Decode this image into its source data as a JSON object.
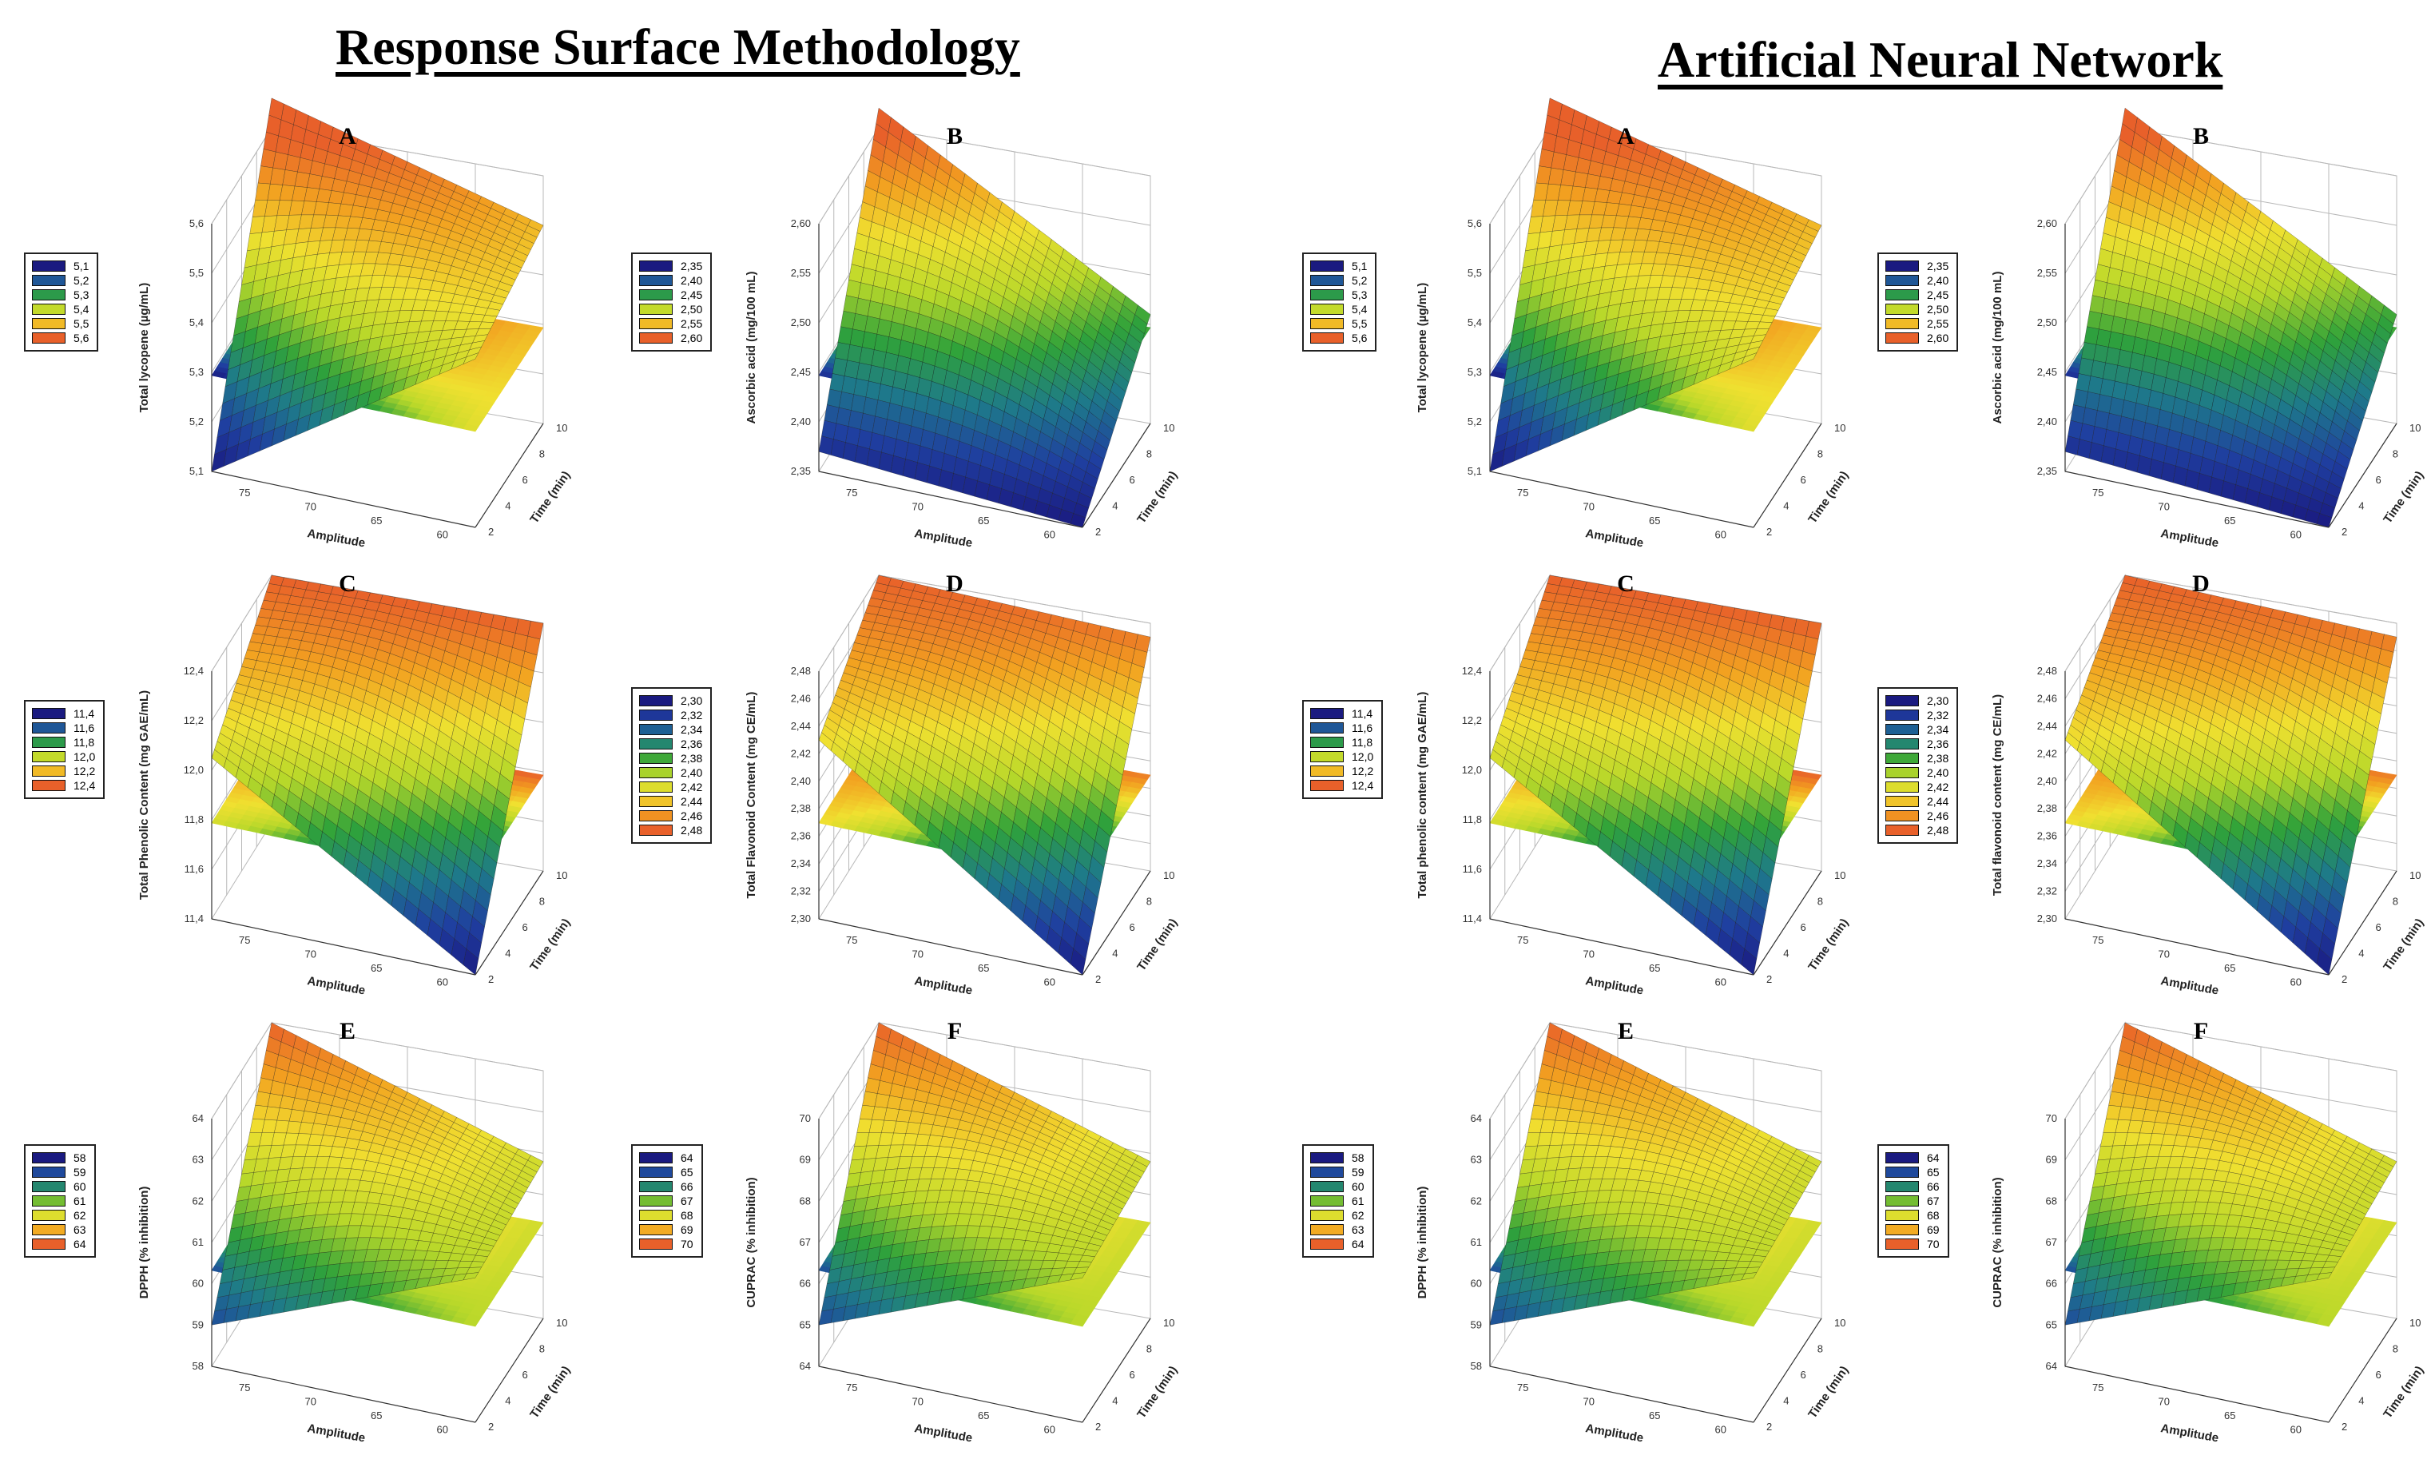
{
  "sections": [
    {
      "title": "Response Surface Methodology"
    },
    {
      "title": "Artificial Neural Network"
    }
  ],
  "palette": [
    "#1a1a80",
    "#1f3fa0",
    "#1e7a8a",
    "#2fa23a",
    "#b8d82a",
    "#f0e030",
    "#f2a020",
    "#e8602a"
  ],
  "chart_data": [
    {
      "type": "surface3d",
      "section": "Response Surface Methodology",
      "title": "A",
      "zlabel": "Total lycopene (µg/mL)",
      "xlabel": "Amplitude",
      "ylabel": "Time (min)",
      "x_ticks": [
        "75",
        "70",
        "65",
        "60"
      ],
      "y_ticks": [
        "2",
        "4",
        "6",
        "8",
        "10"
      ],
      "z_ticks": [
        "5,1",
        "5,2",
        "5,3",
        "5,4",
        "5,5",
        "5,6"
      ],
      "legend": [
        "5,1",
        "5,2",
        "5,3",
        "5,4",
        "5,5",
        "5,6"
      ],
      "corners": [
        5.1,
        5.44,
        5.66,
        5.5
      ]
    },
    {
      "type": "surface3d",
      "section": "Response Surface Methodology",
      "title": "B",
      "zlabel": "Ascorbic acid (mg/100 mL)",
      "xlabel": "Amplitude",
      "ylabel": "Time (min)",
      "x_ticks": [
        "75",
        "70",
        "65",
        "60"
      ],
      "y_ticks": [
        "2",
        "4",
        "6",
        "8",
        "10"
      ],
      "z_ticks": [
        "2,35",
        "2,40",
        "2,45",
        "2,50",
        "2,55",
        "2,60"
      ],
      "legend": [
        "2,35",
        "2,40",
        "2,45",
        "2,50",
        "2,55",
        "2,60"
      ],
      "corners": [
        2.37,
        2.35,
        2.62,
        2.46
      ]
    },
    {
      "type": "surface3d",
      "section": "Response Surface Methodology",
      "title": "C",
      "zlabel": "Total Phenolic Content (mg GAE/mL)",
      "xlabel": "Amplitude",
      "ylabel": "Time (min)",
      "x_ticks": [
        "75",
        "70",
        "65",
        "60"
      ],
      "y_ticks": [
        "2",
        "4",
        "6",
        "8",
        "10"
      ],
      "z_ticks": [
        "11,4",
        "11,6",
        "11,8",
        "12,0",
        "12,2",
        "12,4"
      ],
      "legend": [
        "11,4",
        "11,6",
        "11,8",
        "12,0",
        "12,2",
        "12,4"
      ],
      "corners": [
        12.05,
        11.4,
        12.4,
        12.4
      ]
    },
    {
      "type": "surface3d",
      "section": "Response Surface Methodology",
      "title": "D",
      "zlabel": "Total Flavonoid Content (mg CE/mL)",
      "xlabel": "Amplitude",
      "ylabel": "Time (min)",
      "x_ticks": [
        "75",
        "70",
        "65",
        "60"
      ],
      "y_ticks": [
        "2",
        "4",
        "6",
        "8",
        "10"
      ],
      "z_ticks": [
        "2,30",
        "2,32",
        "2,34",
        "2,36",
        "2,38",
        "2,40",
        "2,42",
        "2,44",
        "2,46",
        "2,48"
      ],
      "legend": [
        "2,30",
        "2,32",
        "2,34",
        "2,36",
        "2,38",
        "2,40",
        "2,42",
        "2,44",
        "2,46",
        "2,48"
      ],
      "corners": [
        2.43,
        2.3,
        2.48,
        2.47
      ]
    },
    {
      "type": "surface3d",
      "section": "Response Surface Methodology",
      "title": "E",
      "zlabel": "DPPH (% inhibition)",
      "xlabel": "Amplitude",
      "ylabel": "Time (min)",
      "x_ticks": [
        "75",
        "70",
        "65",
        "60"
      ],
      "y_ticks": [
        "2",
        "4",
        "6",
        "8",
        "10"
      ],
      "z_ticks": [
        "58",
        "59",
        "60",
        "61",
        "62",
        "63",
        "64"
      ],
      "legend": [
        "58",
        "59",
        "60",
        "61",
        "62",
        "63",
        "64"
      ],
      "corners": [
        59.0,
        61.5,
        64.0,
        61.8
      ]
    },
    {
      "type": "surface3d",
      "section": "Response Surface Methodology",
      "title": "F",
      "zlabel": "CUPRAC (% inhibition)",
      "xlabel": "Amplitude",
      "ylabel": "Time (min)",
      "x_ticks": [
        "75",
        "70",
        "65",
        "60"
      ],
      "y_ticks": [
        "2",
        "4",
        "6",
        "8",
        "10"
      ],
      "z_ticks": [
        "64",
        "65",
        "66",
        "67",
        "68",
        "69",
        "70"
      ],
      "legend": [
        "64",
        "65",
        "66",
        "67",
        "68",
        "69",
        "70"
      ],
      "corners": [
        65.0,
        67.5,
        70.0,
        67.8
      ]
    },
    {
      "type": "surface3d",
      "section": "Artificial Neural Network",
      "title": "A",
      "zlabel": "Total lycopene (µg/mL)",
      "xlabel": "Amplitude",
      "ylabel": "Time (min)",
      "x_ticks": [
        "75",
        "70",
        "65",
        "60"
      ],
      "y_ticks": [
        "2",
        "4",
        "6",
        "8",
        "10"
      ],
      "z_ticks": [
        "5,1",
        "5,2",
        "5,3",
        "5,4",
        "5,5",
        "5,6"
      ],
      "legend": [
        "5,1",
        "5,2",
        "5,3",
        "5,4",
        "5,5",
        "5,6"
      ],
      "corners": [
        5.1,
        5.44,
        5.66,
        5.5
      ]
    },
    {
      "type": "surface3d",
      "section": "Artificial Neural Network",
      "title": "B",
      "zlabel": "Ascorbic acid (mg/100 mL)",
      "xlabel": "Amplitude",
      "ylabel": "Time (min)",
      "x_ticks": [
        "75",
        "70",
        "65",
        "60"
      ],
      "y_ticks": [
        "2",
        "4",
        "6",
        "8",
        "10"
      ],
      "z_ticks": [
        "2,35",
        "2,40",
        "2,45",
        "2,50",
        "2,55",
        "2,60"
      ],
      "legend": [
        "2,35",
        "2,40",
        "2,45",
        "2,50",
        "2,55",
        "2,60"
      ],
      "corners": [
        2.37,
        2.35,
        2.62,
        2.46
      ]
    },
    {
      "type": "surface3d",
      "section": "Artificial Neural Network",
      "title": "C",
      "zlabel": "Total phenolic content (mg GAE/mL)",
      "xlabel": "Amplitude",
      "ylabel": "Time (min)",
      "x_ticks": [
        "75",
        "70",
        "65",
        "60"
      ],
      "y_ticks": [
        "2",
        "4",
        "6",
        "8",
        "10"
      ],
      "z_ticks": [
        "11,4",
        "11,6",
        "11,8",
        "12,0",
        "12,2",
        "12,4"
      ],
      "legend": [
        "11,4",
        "11,6",
        "11,8",
        "12,0",
        "12,2",
        "12,4"
      ],
      "corners": [
        12.05,
        11.4,
        12.4,
        12.4
      ]
    },
    {
      "type": "surface3d",
      "section": "Artificial Neural Network",
      "title": "D",
      "zlabel": "Total flavonoid content (mg CE/mL)",
      "xlabel": "Amplitude",
      "ylabel": "Time (min)",
      "x_ticks": [
        "75",
        "70",
        "65",
        "60"
      ],
      "y_ticks": [
        "2",
        "4",
        "6",
        "8",
        "10"
      ],
      "z_ticks": [
        "2,30",
        "2,32",
        "2,34",
        "2,36",
        "2,38",
        "2,40",
        "2,42",
        "2,44",
        "2,46",
        "2,48"
      ],
      "legend": [
        "2,30",
        "2,32",
        "2,34",
        "2,36",
        "2,38",
        "2,40",
        "2,42",
        "2,44",
        "2,46",
        "2,48"
      ],
      "corners": [
        2.43,
        2.3,
        2.48,
        2.47
      ]
    },
    {
      "type": "surface3d",
      "section": "Artificial Neural Network",
      "title": "E",
      "zlabel": "DPPH (% inhibition)",
      "xlabel": "Amplitude",
      "ylabel": "Time (min)",
      "x_ticks": [
        "75",
        "70",
        "65",
        "60"
      ],
      "y_ticks": [
        "2",
        "4",
        "6",
        "8",
        "10"
      ],
      "z_ticks": [
        "58",
        "59",
        "60",
        "61",
        "62",
        "63",
        "64"
      ],
      "legend": [
        "58",
        "59",
        "60",
        "61",
        "62",
        "63",
        "64"
      ],
      "corners": [
        59.0,
        61.5,
        64.0,
        61.8
      ]
    },
    {
      "type": "surface3d",
      "section": "Artificial Neural Network",
      "title": "F",
      "zlabel": "CUPRAC (% inhibition)",
      "xlabel": "Amplitude",
      "ylabel": "Time (min)",
      "x_ticks": [
        "75",
        "70",
        "65",
        "60"
      ],
      "y_ticks": [
        "2",
        "4",
        "6",
        "8",
        "10"
      ],
      "z_ticks": [
        "64",
        "65",
        "66",
        "67",
        "68",
        "69",
        "70"
      ],
      "legend": [
        "64",
        "65",
        "66",
        "67",
        "68",
        "69",
        "70"
      ],
      "corners": [
        65.0,
        67.5,
        70.0,
        67.8
      ]
    }
  ]
}
